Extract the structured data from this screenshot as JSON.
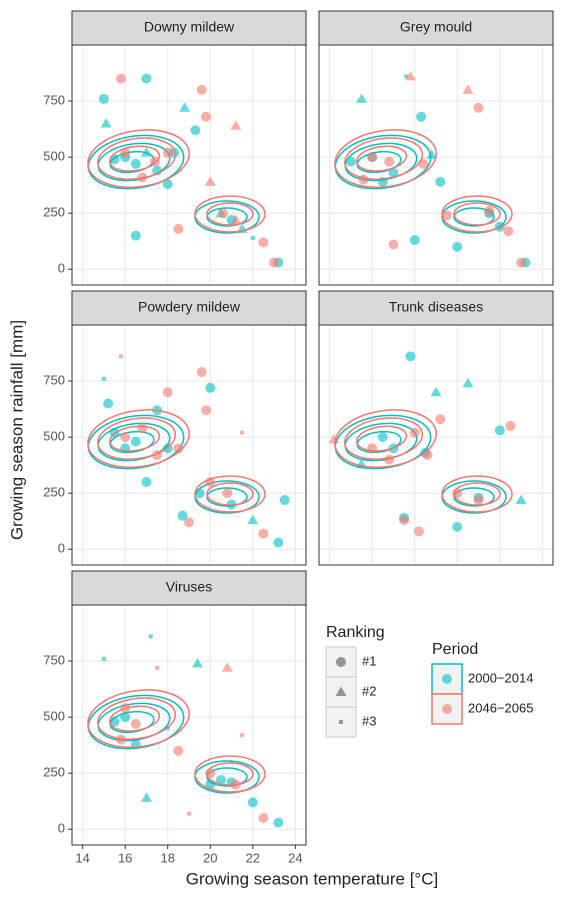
{
  "chart_data": {
    "type": "scatter",
    "x_label": "Growing season temperature [°C]",
    "y_label": "Growing season rainfall [mm]",
    "xlim": [
      13.5,
      24.5
    ],
    "ylim": [
      -70,
      1000
    ],
    "xticks": [
      14,
      16,
      18,
      20,
      22,
      24
    ],
    "yticks": [
      0,
      250,
      500,
      750
    ],
    "grid": true,
    "ranking": {
      "title": "Ranking",
      "labels": [
        "#1",
        "#2",
        "#3"
      ]
    },
    "period": {
      "title": "Period",
      "names": [
        "2000−2014",
        "2046−2065"
      ],
      "colors": [
        "#00BFC4",
        "#F8766D"
      ]
    },
    "panels": [
      {
        "title": "Downy mildew",
        "series": [
          {
            "x": [
              15,
              15.1,
              15.5,
              16,
              16.5,
              17,
              17.5,
              18,
              18.3,
              19.3,
              20.5,
              21,
              21.5,
              22,
              23.2,
              16.5,
              17,
              18.8
            ],
            "y": [
              760,
              650,
              490,
              500,
              470,
              520,
              440,
              380,
              520,
              620,
              250,
              220,
              180,
              140,
              30,
              150,
              850,
              720
            ],
            "ranking": [
              "#1",
              "#2",
              "#1",
              "#1",
              "#1",
              "#2",
              "#1",
              "#1",
              "#1",
              "#1",
              "#2",
              "#1",
              "#2",
              "#3",
              "#1",
              "#1",
              "#1",
              "#2"
            ]
          },
          {
            "x": [
              15.8,
              16,
              16.8,
              17.4,
              18,
              19.6,
              19.8,
              20,
              20.6,
              21.2,
              22.5,
              23,
              21.2,
              18.5
            ],
            "y": [
              850,
              520,
              410,
              480,
              520,
              800,
              680,
              390,
              250,
              220,
              120,
              30,
              640,
              180
            ],
            "ranking": [
              "#1",
              "#1",
              "#1",
              "#1",
              "#1",
              "#1",
              "#1",
              "#2",
              "#1",
              "#2",
              "#1",
              "#1",
              "#2",
              "#1"
            ]
          }
        ]
      },
      {
        "title": "Grey mould",
        "series": [
          {
            "x": [
              15,
              15.5,
              16,
              16.5,
              17,
              17.6,
              18.3,
              18.8,
              19.2,
              20,
              21.5,
              22,
              23.2,
              18
            ],
            "y": [
              480,
              760,
              500,
              390,
              430,
              860,
              680,
              510,
              390,
              100,
              250,
              190,
              30,
              130
            ],
            "ranking": [
              "#1",
              "#2",
              "#1",
              "#1",
              "#1",
              "#3",
              "#1",
              "#2",
              "#1",
              "#1",
              "#1",
              "#1",
              "#1",
              "#1"
            ]
          },
          {
            "x": [
              15.6,
              16,
              16.8,
              17.8,
              18.4,
              19.5,
              20.5,
              21,
              21.5,
              22.4,
              23,
              17
            ],
            "y": [
              400,
              500,
              480,
              860,
              470,
              240,
              800,
              720,
              260,
              170,
              30,
              110
            ],
            "ranking": [
              "#1",
              "#1",
              "#1",
              "#2",
              "#1",
              "#1",
              "#2",
              "#1",
              "#1",
              "#1",
              "#1",
              "#1"
            ]
          }
        ]
      },
      {
        "title": "Powdery mildew",
        "series": [
          {
            "x": [
              15,
              15.2,
              15.5,
              16,
              16.5,
              17,
              17.5,
              18,
              18.7,
              19.5,
              20,
              21,
              22,
              23.5,
              23.2
            ],
            "y": [
              760,
              650,
              520,
              450,
              480,
              300,
              620,
              450,
              150,
              250,
              720,
              200,
              130,
              220,
              30
            ],
            "ranking": [
              "#3",
              "#1",
              "#1",
              "#1",
              "#1",
              "#1",
              "#1",
              "#1",
              "#1",
              "#1",
              "#1",
              "#1",
              "#2",
              "#1",
              "#1"
            ]
          },
          {
            "x": [
              15.8,
              16,
              16.8,
              17.5,
              18,
              18.5,
              19.6,
              19.8,
              20,
              20.8,
              21.5,
              22.5,
              19
            ],
            "y": [
              860,
              500,
              540,
              420,
              700,
              450,
              790,
              620,
              300,
              250,
              520,
              70,
              120
            ],
            "ranking": [
              "#3",
              "#1",
              "#1",
              "#1",
              "#1",
              "#1",
              "#1",
              "#1",
              "#1",
              "#1",
              "#3",
              "#1",
              "#1"
            ]
          }
        ]
      },
      {
        "title": "Trunk diseases",
        "series": [
          {
            "x": [
              15.5,
              16.5,
              17,
              17.5,
              17.8,
              18.5,
              19,
              20.5,
              21,
              22,
              23,
              20
            ],
            "y": [
              380,
              500,
              450,
              140,
              860,
              430,
              700,
              740,
              230,
              530,
              220,
              100
            ],
            "ranking": [
              "#2",
              "#1",
              "#1",
              "#1",
              "#1",
              "#1",
              "#2",
              "#2",
              "#1",
              "#1",
              "#2",
              "#1"
            ]
          },
          {
            "x": [
              14.2,
              16,
              16.8,
              17.5,
              18,
              18.6,
              19.2,
              20,
              21,
              22.5,
              18.2
            ],
            "y": [
              490,
              450,
              400,
              130,
              520,
              420,
              580,
              250,
              220,
              550,
              80
            ],
            "ranking": [
              "#2",
              "#1",
              "#1",
              "#1",
              "#1",
              "#1",
              "#1",
              "#1",
              "#1",
              "#1",
              "#1"
            ]
          }
        ]
      },
      {
        "title": "Viruses",
        "series": [
          {
            "x": [
              15,
              15.5,
              16,
              16.5,
              17,
              18,
              19.4,
              20,
              20.5,
              21,
              22,
              23.2,
              17.2
            ],
            "y": [
              760,
              480,
              500,
              380,
              140,
              450,
              740,
              200,
              220,
              210,
              120,
              30,
              860
            ],
            "ranking": [
              "#3",
              "#1",
              "#1",
              "#1",
              "#2",
              "#3",
              "#2",
              "#1",
              "#1",
              "#1",
              "#1",
              "#1",
              "#3"
            ]
          },
          {
            "x": [
              15.8,
              16,
              16.5,
              17.5,
              18.5,
              20,
              20.8,
              21.2,
              21.5,
              22.5,
              19
            ],
            "y": [
              400,
              540,
              470,
              720,
              350,
              250,
              720,
              200,
              420,
              50,
              70
            ],
            "ranking": [
              "#1",
              "#1",
              "#1",
              "#3",
              "#1",
              "#1",
              "#2",
              "#1",
              "#3",
              "#1",
              "#3"
            ]
          }
        ]
      }
    ]
  }
}
